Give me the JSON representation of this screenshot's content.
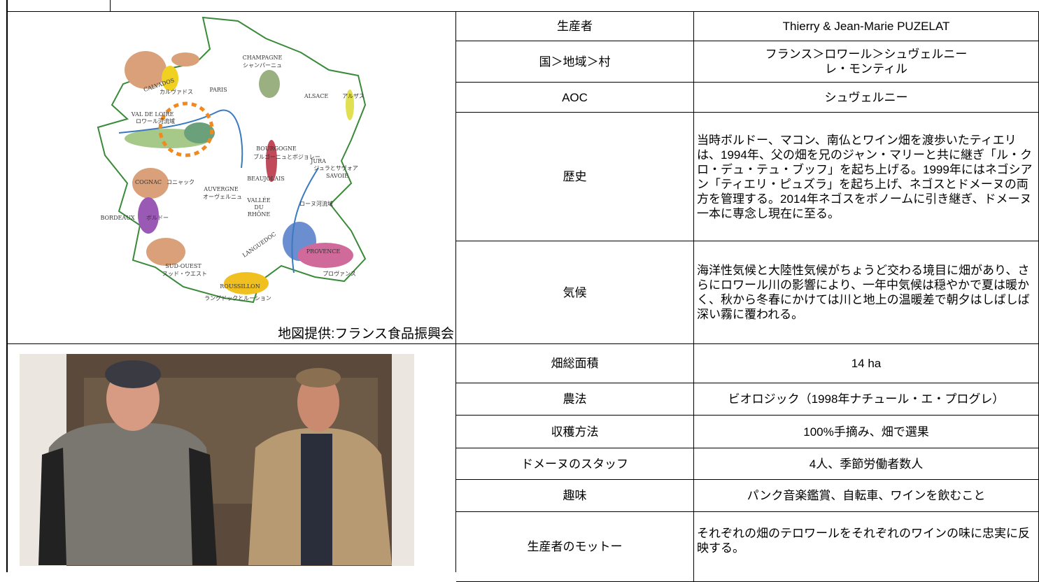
{
  "map": {
    "labels": [
      "CHAMPAGNE",
      "シャンパーニュ",
      "CALVADOS",
      "カルヴァドス",
      "PARIS",
      "ALSACE",
      "アルザス",
      "VAL DE LOIRE",
      "ロワール河流域",
      "BOURGOGNE",
      "ブルゴーニュとボジョレー",
      "JURA",
      "ジュラとサヴォア",
      "SAVOIE",
      "BEAUJOLAIS",
      "COGNAC",
      "コニャック",
      "AUVERGNE",
      "オーヴェルニュ",
      "VALLÉE",
      "DU",
      "RHÔNE",
      "ローヌ河流域",
      "BORDEAUX",
      "ボルドー",
      "LANGUEDOC",
      "PROVENCE",
      "SUD-OUEST",
      "スッド・ウエスト",
      "プロヴァンス",
      "ROUSSILLON",
      "ラングドックとルーション"
    ],
    "credit": "地図提供:フランス食品振興会"
  },
  "table": {
    "rows": [
      [
        "生産者",
        "Thierry & Jean-Marie PUZELAT"
      ],
      [
        "国＞地域＞村",
        "フランス＞ロワール＞シュヴェルニー\nレ・モンティル"
      ],
      [
        "AOC",
        "シュヴェルニー"
      ],
      [
        "歴史",
        "当時ボルドー、マコン、南仏とワイン畑を渡歩いたティエリは、1994年、父の畑を兄のジャン・マリーと共に継ぎ「ル・クロ・デュ・テュ・ブッフ」を起ち上げる。1999年にはネゴシアン「ティエリ・ピュズラ」を起ち上げ、ネゴスとドメーヌの両方を管理する。2014年ネゴスをボノームに引き継ぎ、ドメーヌ一本に専念し現在に至る。"
      ],
      [
        "気候",
        "海洋性気候と大陸性気候がちょうど交わる境目に畑があり、さらにロワール川の影響により、一年中気候は穏やかで夏は暖かく、秋から冬春にかけては川と地上の温暖差で朝夕はしばしば深い霧に覆われる。"
      ],
      [
        "畑総面積",
        "14 ha"
      ],
      [
        "農法",
        "ビオロジック（1998年ナチュール・エ・プログレ）"
      ],
      [
        "収穫方法",
        "100%手摘み、畑で選果"
      ],
      [
        "ドメーヌのスタッフ",
        "4人、季節労働者数人"
      ],
      [
        "趣味",
        "パンク音楽鑑賞、自転車、ワインを飲むこと"
      ],
      [
        "生産者のモットー",
        "それぞれの畑のテロワールをそれぞれのワインの味に忠実に反映する。"
      ]
    ]
  }
}
